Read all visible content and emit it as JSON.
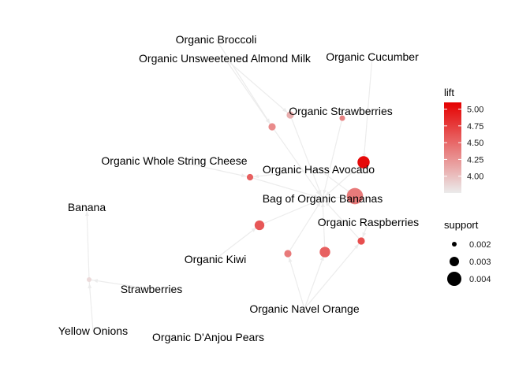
{
  "graph": {
    "items": [
      {
        "id": "broccoli",
        "label": "Organic Broccoli"
      },
      {
        "id": "almond",
        "label": "Organic Unsweetened Almond Milk"
      },
      {
        "id": "cucumber",
        "label": "Organic Cucumber"
      },
      {
        "id": "strawberries_org",
        "label": "Organic Strawberries"
      },
      {
        "id": "string_cheese",
        "label": "Organic Whole String Cheese"
      },
      {
        "id": "avocado",
        "label": "Organic Hass Avocado"
      },
      {
        "id": "bag_bananas",
        "label": "Bag of Organic Bananas"
      },
      {
        "id": "banana",
        "label": "Banana"
      },
      {
        "id": "raspberries",
        "label": "Organic Raspberries"
      },
      {
        "id": "kiwi",
        "label": "Organic Kiwi"
      },
      {
        "id": "strawberries",
        "label": "Strawberries"
      },
      {
        "id": "navel_orange",
        "label": "Organic Navel Orange"
      },
      {
        "id": "yellow_onions",
        "label": "Yellow Onions"
      },
      {
        "id": "pears",
        "label": "Organic D'Anjou Pears"
      }
    ],
    "rules": [
      {
        "id": "r1",
        "support": 0.0022,
        "lift": 4.3
      },
      {
        "id": "r2",
        "support": 0.0022,
        "lift": 4.1
      },
      {
        "id": "r3",
        "support": 0.0018,
        "lift": 4.35
      },
      {
        "id": "r4",
        "support": 0.0034,
        "lift": 5.05
      },
      {
        "id": "r5",
        "support": 0.0044,
        "lift": 4.4
      },
      {
        "id": "r6",
        "support": 0.002,
        "lift": 4.55
      },
      {
        "id": "r7",
        "support": 0.0028,
        "lift": 4.6
      },
      {
        "id": "r8",
        "support": 0.0022,
        "lift": 4.4
      },
      {
        "id": "r9",
        "support": 0.003,
        "lift": 4.55
      },
      {
        "id": "r10",
        "support": 0.0022,
        "lift": 4.65
      },
      {
        "id": "r11",
        "support": 0.0016,
        "lift": 3.85
      }
    ],
    "edges": [
      [
        "broccoli",
        "r1"
      ],
      [
        "almond",
        "r1"
      ],
      [
        "r1",
        "bag_bananas"
      ],
      [
        "almond",
        "r2"
      ],
      [
        "r2",
        "bag_bananas"
      ],
      [
        "cucumber",
        "r4"
      ],
      [
        "r4",
        "bag_bananas"
      ],
      [
        "strawberries_org",
        "r3"
      ],
      [
        "r3",
        "bag_bananas"
      ],
      [
        "string_cheese",
        "r6"
      ],
      [
        "avocado",
        "r6"
      ],
      [
        "r6",
        "bag_bananas"
      ],
      [
        "avocado",
        "r5"
      ],
      [
        "r5",
        "bag_bananas"
      ],
      [
        "kiwi",
        "r7"
      ],
      [
        "r7",
        "bag_bananas"
      ],
      [
        "navel_orange",
        "r8"
      ],
      [
        "r8",
        "bag_bananas"
      ],
      [
        "navel_orange",
        "r9"
      ],
      [
        "r9",
        "bag_bananas"
      ],
      [
        "raspberries",
        "r10"
      ],
      [
        "navel_orange",
        "r10"
      ],
      [
        "r10",
        "bag_bananas"
      ],
      [
        "strawberries",
        "r11"
      ],
      [
        "yellow_onions",
        "r11"
      ],
      [
        "r11",
        "banana"
      ]
    ]
  },
  "legend": {
    "lift": {
      "title": "lift",
      "ticks": [
        "5.00",
        "4.75",
        "4.50",
        "4.25",
        "4.00"
      ],
      "tick_values": [
        5.0,
        4.75,
        4.5,
        4.25,
        4.0
      ],
      "range": [
        3.75,
        5.1
      ],
      "color_low": "#ebebeb",
      "color_high": "#e50000"
    },
    "support": {
      "title": "support",
      "ticks": [
        "0.002",
        "0.003",
        "0.004"
      ],
      "tick_values": [
        0.002,
        0.003,
        0.004
      ]
    }
  },
  "colors": {
    "edge": "#ececec",
    "label": "#000000"
  }
}
